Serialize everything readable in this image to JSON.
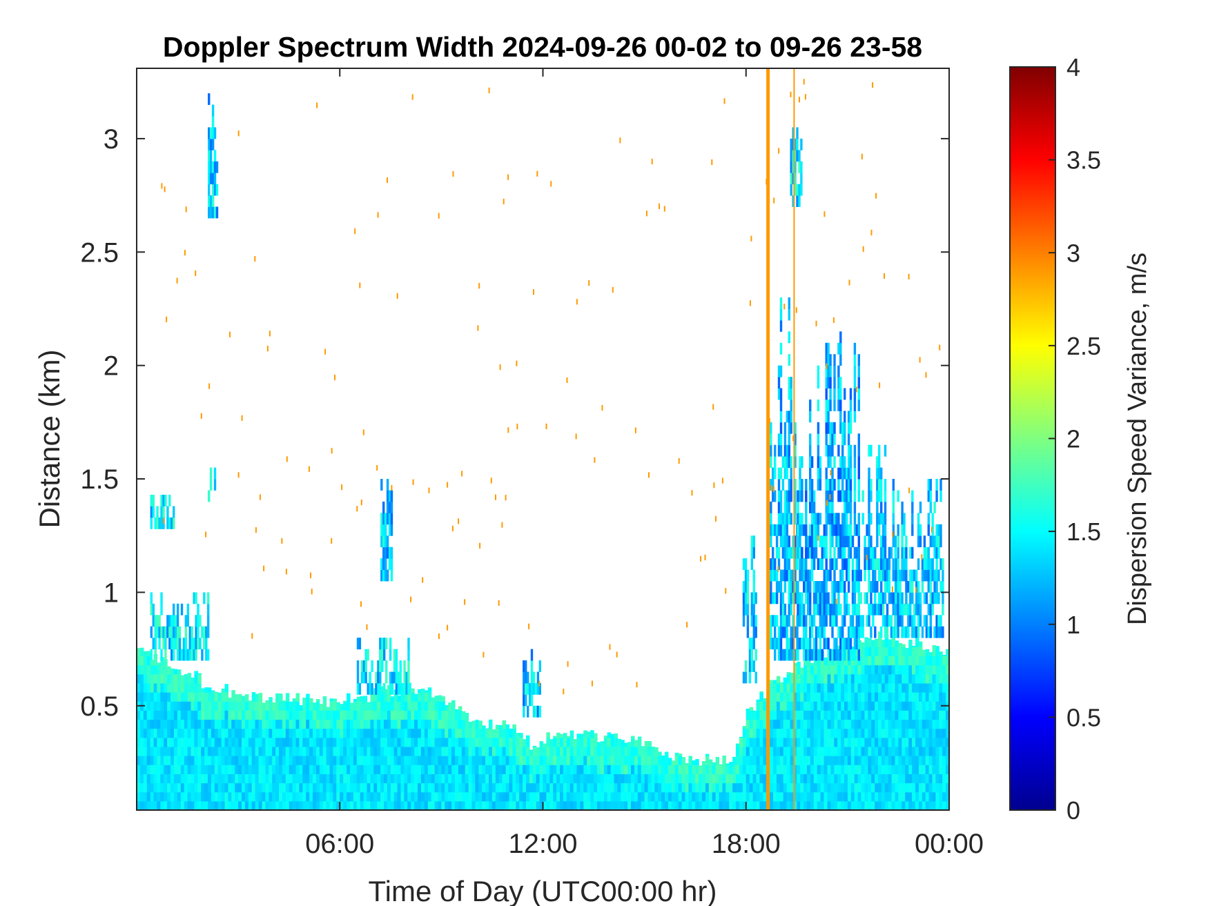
{
  "chart_data": {
    "type": "heatmap",
    "title": "Doppler Spectrum Width 2024-09-26 00-02 to 09-26 23-58",
    "xlabel": "Time of Day (UTC00:00 hr)",
    "ylabel": "Distance (km)",
    "colorbar_label": "Dispersion Speed Variance, m/s",
    "colormap": "jet",
    "x_unit": "hours",
    "xlim": [
      0,
      24
    ],
    "ylim": [
      0.04,
      3.31
    ],
    "clim": [
      0,
      4
    ],
    "x_ticks": [
      {
        "value": 6,
        "label": "06:00"
      },
      {
        "value": 12,
        "label": "12:00"
      },
      {
        "value": 18,
        "label": "18:00"
      },
      {
        "value": 24,
        "label": "00:00"
      }
    ],
    "y_ticks": [
      {
        "value": 0.5,
        "label": "0.5"
      },
      {
        "value": 1,
        "label": "1"
      },
      {
        "value": 1.5,
        "label": "1.5"
      },
      {
        "value": 2,
        "label": "2"
      },
      {
        "value": 2.5,
        "label": "2.5"
      },
      {
        "value": 3,
        "label": "3"
      }
    ],
    "colorbar_ticks": [
      {
        "value": 0,
        "label": "0"
      },
      {
        "value": 0.5,
        "label": "0.5"
      },
      {
        "value": 1,
        "label": "1"
      },
      {
        "value": 1.5,
        "label": "1.5"
      },
      {
        "value": 2,
        "label": "2"
      },
      {
        "value": 2.5,
        "label": "2.5"
      },
      {
        "value": 3,
        "label": "3"
      },
      {
        "value": 3.5,
        "label": "3.5"
      },
      {
        "value": 4,
        "label": "4"
      }
    ],
    "typical_value_near_ground": 1.4,
    "boundary_layer_top_km": [
      [
        0,
        0.75
      ],
      [
        0.5,
        0.7
      ],
      [
        1,
        0.68
      ],
      [
        1.5,
        0.65
      ],
      [
        2,
        0.6
      ],
      [
        2.5,
        0.58
      ],
      [
        3,
        0.55
      ],
      [
        4,
        0.54
      ],
      [
        5,
        0.53
      ],
      [
        6,
        0.52
      ],
      [
        7,
        0.55
      ],
      [
        8,
        0.58
      ],
      [
        9,
        0.55
      ],
      [
        9.5,
        0.48
      ],
      [
        10,
        0.42
      ],
      [
        11,
        0.42
      ],
      [
        11.7,
        0.32
      ],
      [
        12,
        0.36
      ],
      [
        13,
        0.38
      ],
      [
        14,
        0.36
      ],
      [
        15,
        0.33
      ],
      [
        16,
        0.27
      ],
      [
        17,
        0.26
      ],
      [
        17.6,
        0.28
      ],
      [
        18,
        0.45
      ],
      [
        18.5,
        0.55
      ],
      [
        19,
        0.62
      ],
      [
        20,
        0.72
      ],
      [
        21,
        0.78
      ],
      [
        22,
        0.8
      ],
      [
        23,
        0.78
      ],
      [
        24,
        0.72
      ]
    ],
    "regions": [
      {
        "t0": 0.4,
        "t1": 1.1,
        "z0": 1.28,
        "z1": 1.43,
        "value": 1.45
      },
      {
        "t0": 0.4,
        "t1": 2.1,
        "z0": 0.7,
        "z1": 1.0,
        "value": 1.4
      },
      {
        "t0": 2.1,
        "t1": 2.4,
        "z0": 2.65,
        "z1": 3.3,
        "value": 1.3
      },
      {
        "t0": 2.1,
        "t1": 2.3,
        "z0": 1.4,
        "z1": 1.55,
        "value": 1.35
      },
      {
        "t0": 7.2,
        "t1": 7.5,
        "z0": 1.05,
        "z1": 1.6,
        "value": 1.3
      },
      {
        "t0": 6.5,
        "t1": 8.0,
        "z0": 0.55,
        "z1": 0.8,
        "value": 1.4
      },
      {
        "t0": 11.4,
        "t1": 11.9,
        "z0": 0.45,
        "z1": 0.78,
        "value": 1.3
      },
      {
        "t0": 17.9,
        "t1": 18.3,
        "z0": 0.6,
        "z1": 1.4,
        "value": 1.3
      },
      {
        "t0": 18.7,
        "t1": 19.5,
        "z0": 0.7,
        "z1": 2.3,
        "value": 1.25
      },
      {
        "t0": 19.3,
        "t1": 19.6,
        "z0": 2.7,
        "z1": 3.15,
        "value": 1.4
      },
      {
        "t0": 19.5,
        "t1": 21.3,
        "z0": 0.7,
        "z1": 2.15,
        "value": 1.2
      },
      {
        "t0": 21.3,
        "t1": 22.4,
        "z0": 0.8,
        "z1": 1.65,
        "value": 1.3
      },
      {
        "t0": 22.4,
        "t1": 23.8,
        "z0": 0.8,
        "z1": 1.55,
        "value": 1.3
      }
    ],
    "vertical_lines": [
      {
        "x": 18.65,
        "value": 2.9,
        "label": ""
      },
      {
        "x": 19.42,
        "value": 2.9,
        "label": ""
      }
    ]
  }
}
